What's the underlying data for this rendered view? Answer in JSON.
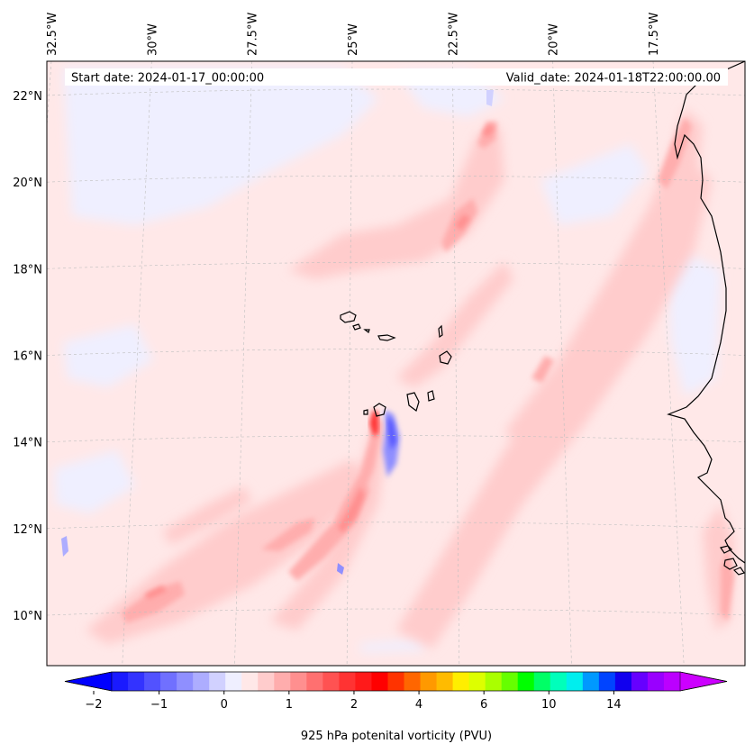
{
  "map": {
    "start_label": "Start date: 2024-01-17_00:00:00",
    "valid_label": "Valid_date: 2024-01-18T22:00:00.00",
    "extent": {
      "lon": [
        -33.3,
        -15.6
      ],
      "lat": [
        8.9,
        22.8
      ]
    },
    "lon_ticks": [
      {
        "value": -32.5,
        "label": "32.5°W"
      },
      {
        "value": -30.0,
        "label": "30°W"
      },
      {
        "value": -27.5,
        "label": "27.5°W"
      },
      {
        "value": -25.0,
        "label": "25°W"
      },
      {
        "value": -22.5,
        "label": "22.5°W"
      },
      {
        "value": -20.0,
        "label": "20°W"
      },
      {
        "value": -17.5,
        "label": "17.5°W"
      }
    ],
    "lat_ticks": [
      {
        "value": 10,
        "label": "10°N"
      },
      {
        "value": 12,
        "label": "12°N"
      },
      {
        "value": 14,
        "label": "14°N"
      },
      {
        "value": 16,
        "label": "16°N"
      },
      {
        "value": 18,
        "label": "18°N"
      },
      {
        "value": 20,
        "label": "20°N"
      },
      {
        "value": 22,
        "label": "22°N"
      }
    ],
    "gridlines": true,
    "background_color": "#ffe8e8"
  },
  "colorbar": {
    "label": "925 hPa potenital vorticity (PVU)",
    "extend": "both",
    "under_color": "#0000ff",
    "over_color": "#cc00ff",
    "colors": [
      "#1a1aff",
      "#3333ff",
      "#5252ff",
      "#7070ff",
      "#8f8fff",
      "#adadff",
      "#d1d1ff",
      "#efefff",
      "#ffe8e8",
      "#ffcccc",
      "#ffadad",
      "#ff8f8f",
      "#ff7070",
      "#ff5252",
      "#ff3333",
      "#ff1a1a",
      "#ff0000",
      "#ff3300",
      "#ff6600",
      "#ff9900",
      "#ffbb00",
      "#ffee00",
      "#ddff00",
      "#aaff00",
      "#66ff00",
      "#00ff00",
      "#00ff66",
      "#00ffbb",
      "#00eeee",
      "#0099ff",
      "#0044ff",
      "#1100ee",
      "#6600ff",
      "#9900ff",
      "#bb00ff"
    ],
    "ticks": [
      {
        "label": "−2",
        "index": 0
      },
      {
        "label": "−1",
        "index": 4
      },
      {
        "label": "0",
        "index": 8
      },
      {
        "label": "1",
        "index": 12
      },
      {
        "label": "2",
        "index": 16
      },
      {
        "label": "4",
        "index": 20
      },
      {
        "label": "6",
        "index": 24
      },
      {
        "label": "10",
        "index": 28
      },
      {
        "label": "14",
        "index": 32
      }
    ]
  }
}
